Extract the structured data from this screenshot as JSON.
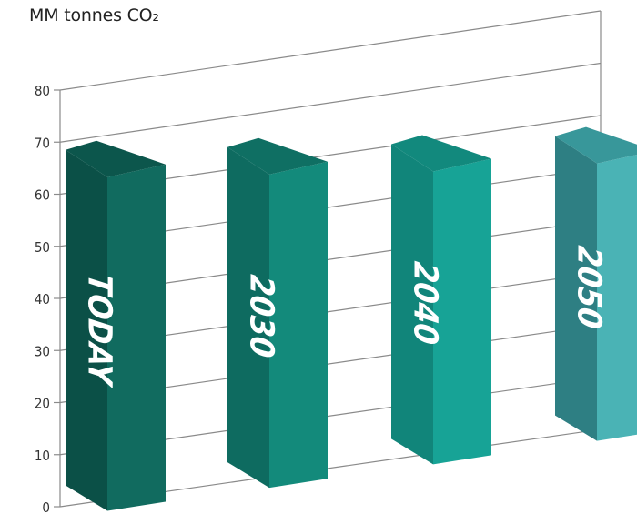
{
  "chart_data": {
    "type": "bar",
    "ylabel": "MM tonnes CO₂",
    "categories": [
      "TODAY",
      "2030",
      "2040",
      "2050"
    ],
    "values": [
      63,
      59,
      55,
      52
    ],
    "ylim": [
      0,
      80
    ],
    "yticks": [
      {
        "value": 0,
        "label": "0"
      },
      {
        "value": 10,
        "label": "10"
      },
      {
        "value": 20,
        "label": "20"
      },
      {
        "value": 30,
        "label": "30"
      },
      {
        "value": 40,
        "label": "40"
      },
      {
        "value": 50,
        "label": "50"
      },
      {
        "value": 60,
        "label": "60"
      },
      {
        "value": 70,
        "label": "70"
      },
      {
        "value": 80,
        "label": "80"
      }
    ],
    "grid": true,
    "colors": {
      "front": [
        "#116b5f",
        "#138a7b",
        "#17a396",
        "#4ab3b5"
      ],
      "side": [
        "#0b5047",
        "#0e6b60",
        "#11857a",
        "#2e7f83"
      ],
      "top": [
        "#0c564c",
        "#0f6f63",
        "#12897d",
        "#38979a"
      ],
      "grid": "#8a8a8a",
      "tick_text": "#333333",
      "bar_label": "#ffffff"
    }
  }
}
